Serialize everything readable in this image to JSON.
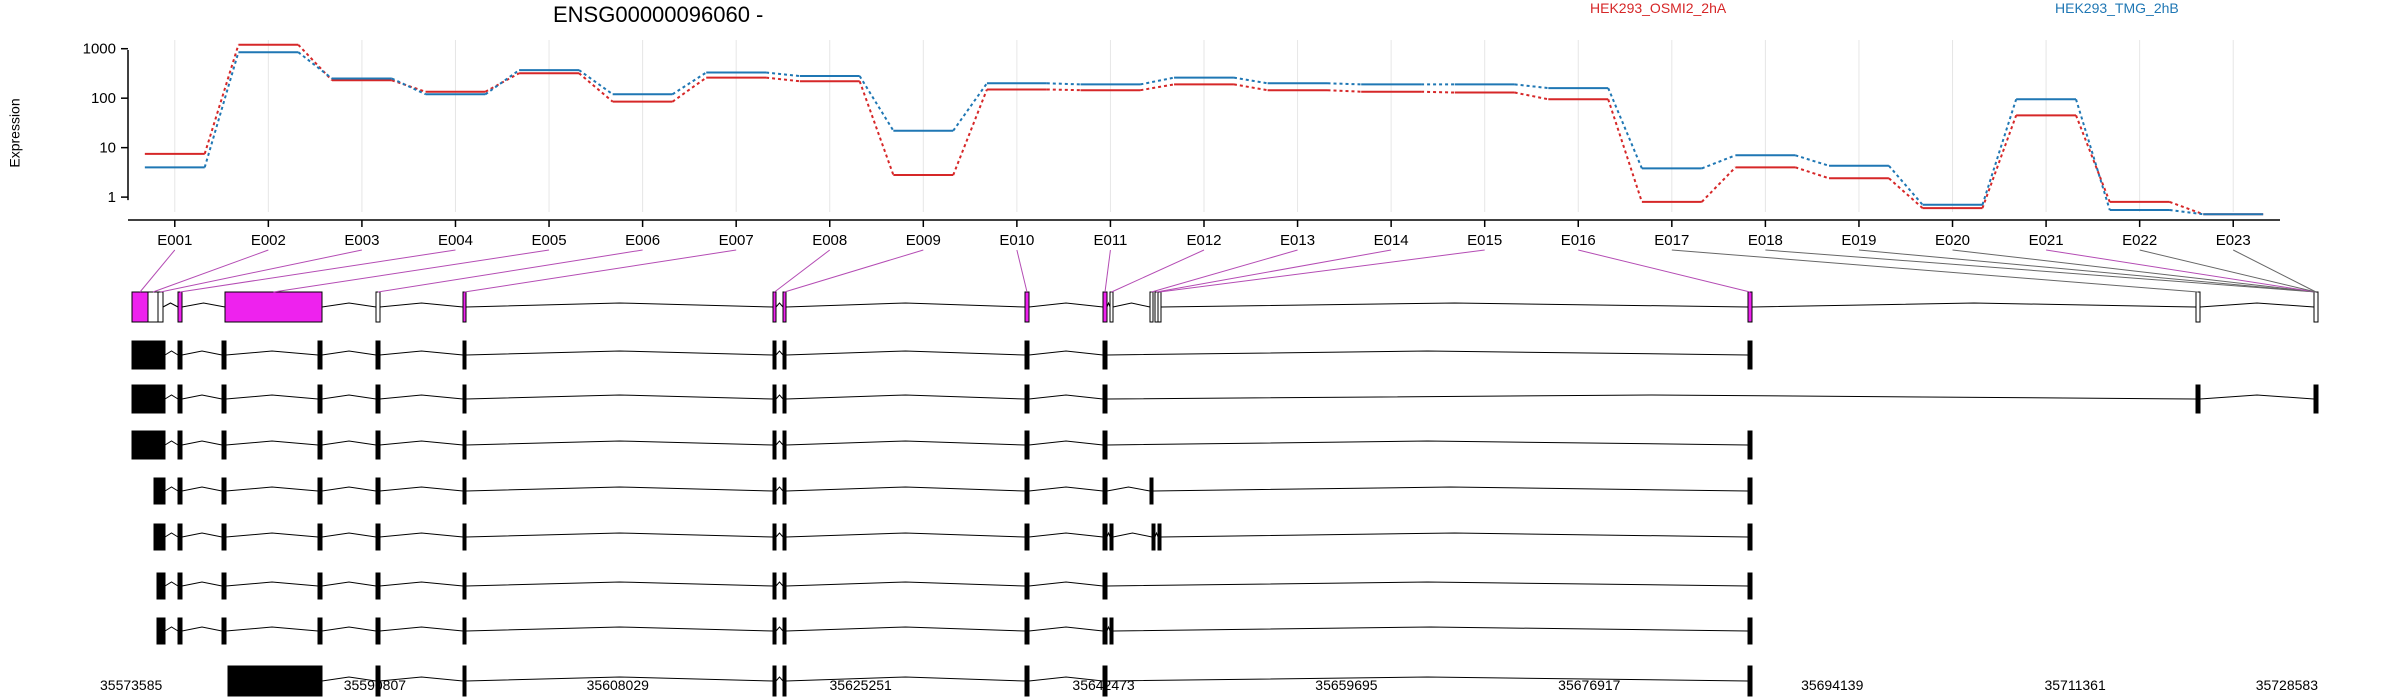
{
  "chart_data": {
    "type": "line",
    "title": "ENSG00000096060 -",
    "ylabel": "Expression",
    "yscale": "log",
    "ylim": [
      0.5,
      1500
    ],
    "y_ticks": [
      "1",
      "10",
      "100",
      "1000"
    ],
    "y_tick_values": [
      1,
      10,
      100,
      1000
    ],
    "categories": [
      "E001",
      "E002",
      "E003",
      "E004",
      "E005",
      "E006",
      "E007",
      "E008",
      "E009",
      "E010",
      "E011",
      "E012",
      "E013",
      "E014",
      "E015",
      "E016",
      "E017",
      "E018",
      "E019",
      "E020",
      "E021",
      "E022",
      "E023"
    ],
    "series": [
      {
        "name": "HEK293_OSMI2_2hA",
        "color": "#d62728",
        "values": [
          7.5,
          1200,
          230,
          135,
          320,
          85,
          260,
          220,
          2.8,
          150,
          145,
          190,
          145,
          135,
          130,
          95,
          0.8,
          4,
          2.4,
          0.6,
          45,
          0.8,
          0.45
        ]
      },
      {
        "name": "HEK293_TMG_2hB",
        "color": "#1f77b4",
        "values": [
          4,
          850,
          250,
          120,
          370,
          120,
          330,
          280,
          22,
          200,
          190,
          260,
          200,
          190,
          190,
          160,
          3.8,
          7,
          4.3,
          0.7,
          95,
          0.55,
          0.45
        ]
      }
    ],
    "grid": true,
    "legend_position": "top",
    "genomic_coordinates": [
      "35573585",
      "35590807",
      "35608029",
      "35625251",
      "35642473",
      "35659695",
      "35676917",
      "35694139",
      "35711361",
      "35728583"
    ],
    "highlight_color": "#ee22ee",
    "transcript_count": 9
  }
}
